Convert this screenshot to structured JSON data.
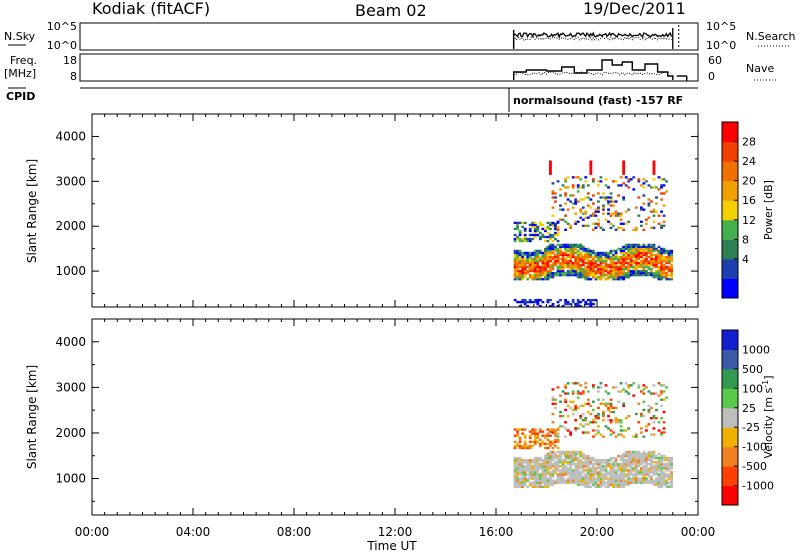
{
  "header": {
    "station": "Kodiak (fitACF)",
    "beam": "Beam 02",
    "date": "19/Dec/2011"
  },
  "panels": {
    "noise": {
      "left_label": "N.Sky",
      "left_ticks": [
        "10^5",
        "10^0"
      ],
      "right_ticks": [
        "10^5",
        "10^0"
      ],
      "right_label": "N.Search"
    },
    "freq": {
      "left_label_1": "Freq.",
      "left_label_2": "[MHz]",
      "left_ticks": [
        "18",
        "8"
      ],
      "right_ticks": [
        "60",
        "0"
      ],
      "right_label": "Nave"
    },
    "cpid": {
      "left_label": "CPID",
      "text": "normalsound (fast) -157 RF"
    }
  },
  "chart_data": [
    {
      "type": "heatmap",
      "panel": "power",
      "title": "",
      "xlabel": "Time UT",
      "ylabel": "Slant Range [km]",
      "xlim": [
        0,
        24
      ],
      "ylim": [
        200,
        4500
      ],
      "x_ticks": [
        "00:00",
        "04:00",
        "08:00",
        "12:00",
        "16:00",
        "20:00",
        "00:00"
      ],
      "y_ticks": [
        1000,
        2000,
        3000,
        4000
      ],
      "data_time_range": [
        16.7,
        23.0
      ],
      "colorbar": {
        "label": "Power [dB]",
        "ticks": [
          "28",
          "24",
          "20",
          "16",
          "12",
          "8",
          "4"
        ],
        "colors": [
          "#0000ff",
          "#1f3fb0",
          "#2f7f55",
          "#45b050",
          "#f5d000",
          "#f0a000",
          "#f07000",
          "#f04000",
          "#ff0000"
        ]
      },
      "echo_regions": [
        {
          "t": [
            16.7,
            23.0
          ],
          "range": [
            850,
            1500
          ],
          "level": "strong",
          "approx_db": [
            12,
            28
          ]
        },
        {
          "t": [
            16.8,
            18.4
          ],
          "range": [
            1650,
            2100
          ],
          "level": "medium",
          "approx_db": [
            4,
            16
          ]
        },
        {
          "t": [
            18.2,
            22.8
          ],
          "range": [
            1900,
            3100
          ],
          "level": "scattered",
          "approx_db": [
            4,
            24
          ]
        },
        {
          "t": [
            16.7,
            20.0
          ],
          "range": [
            200,
            350
          ],
          "level": "weak",
          "approx_db": [
            4,
            10
          ]
        }
      ]
    },
    {
      "type": "heatmap",
      "panel": "velocity",
      "title": "",
      "xlabel": "Time UT",
      "ylabel": "Slant Range [km]",
      "xlim": [
        0,
        24
      ],
      "ylim": [
        200,
        4500
      ],
      "x_ticks": [
        "00:00",
        "04:00",
        "08:00",
        "12:00",
        "16:00",
        "20:00",
        "00:00"
      ],
      "y_ticks": [
        1000,
        2000,
        3000,
        4000
      ],
      "data_time_range": [
        16.7,
        23.0
      ],
      "colorbar": {
        "label": "Velocity [m s^-1]",
        "ticks": [
          "1000",
          "500",
          "100",
          "25",
          "-25",
          "-100",
          "-500",
          "-1000"
        ],
        "colors": [
          "#ff0000",
          "#ff4000",
          "#f08020",
          "#f0b000",
          "#bebebe",
          "#5ac84a",
          "#2f9a50",
          "#3a5aa8",
          "#1020d0"
        ]
      },
      "echo_regions": [
        {
          "t": [
            16.7,
            23.0
          ],
          "range": [
            850,
            1500
          ],
          "level": "mostly near zero",
          "approx_vel": [
            -25,
            25
          ]
        },
        {
          "t": [
            16.8,
            18.5
          ],
          "range": [
            1500,
            2100
          ],
          "level": "negative",
          "approx_vel": [
            -500,
            -25
          ]
        },
        {
          "t": [
            18.2,
            22.8
          ],
          "range": [
            1900,
            3000
          ],
          "level": "mixed",
          "approx_vel": [
            -500,
            500
          ]
        }
      ]
    }
  ]
}
